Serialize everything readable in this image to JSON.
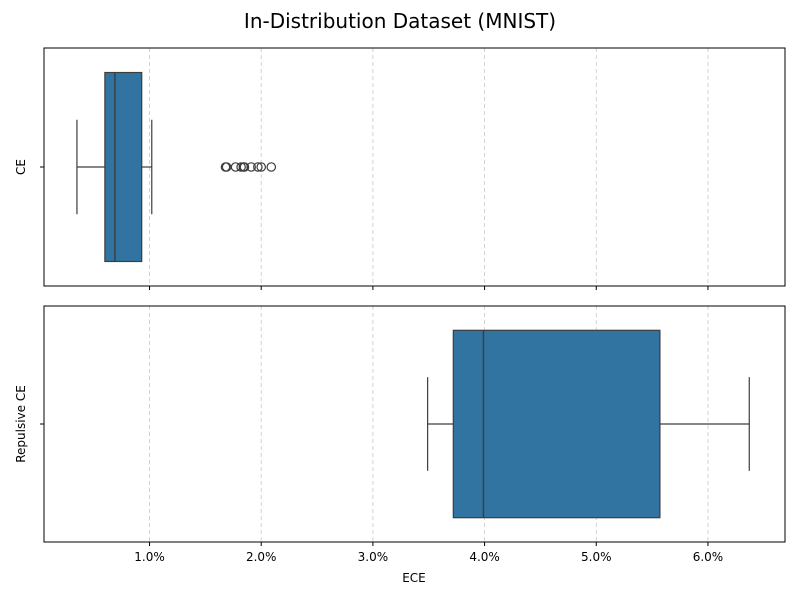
{
  "chart_data": {
    "type": "boxplot",
    "title": "In-Distribution Dataset (MNIST)",
    "xlabel": "ECE",
    "x_tick_labels": [
      "1.0%",
      "2.0%",
      "3.0%",
      "4.0%",
      "5.0%",
      "6.0%"
    ],
    "x_ticks": [
      0.01,
      0.02,
      0.03,
      0.04,
      0.05,
      0.06
    ],
    "xlim": [
      0.00055,
      0.0669
    ],
    "grid": "x-dashed",
    "box_color": "#3274a1",
    "panels": [
      {
        "category": "CE",
        "whisker_low": 0.0035,
        "q1": 0.006,
        "median": 0.0069,
        "q3": 0.0093,
        "whisker_high": 0.0102,
        "outliers": [
          0.0168,
          0.0169,
          0.0177,
          0.0182,
          0.0184,
          0.0185,
          0.0191,
          0.0197,
          0.02,
          0.0209
        ]
      },
      {
        "category": "Repulsive CE",
        "whisker_low": 0.0349,
        "q1": 0.0372,
        "median": 0.0399,
        "q3": 0.0557,
        "whisker_high": 0.0637,
        "outliers": []
      }
    ]
  }
}
